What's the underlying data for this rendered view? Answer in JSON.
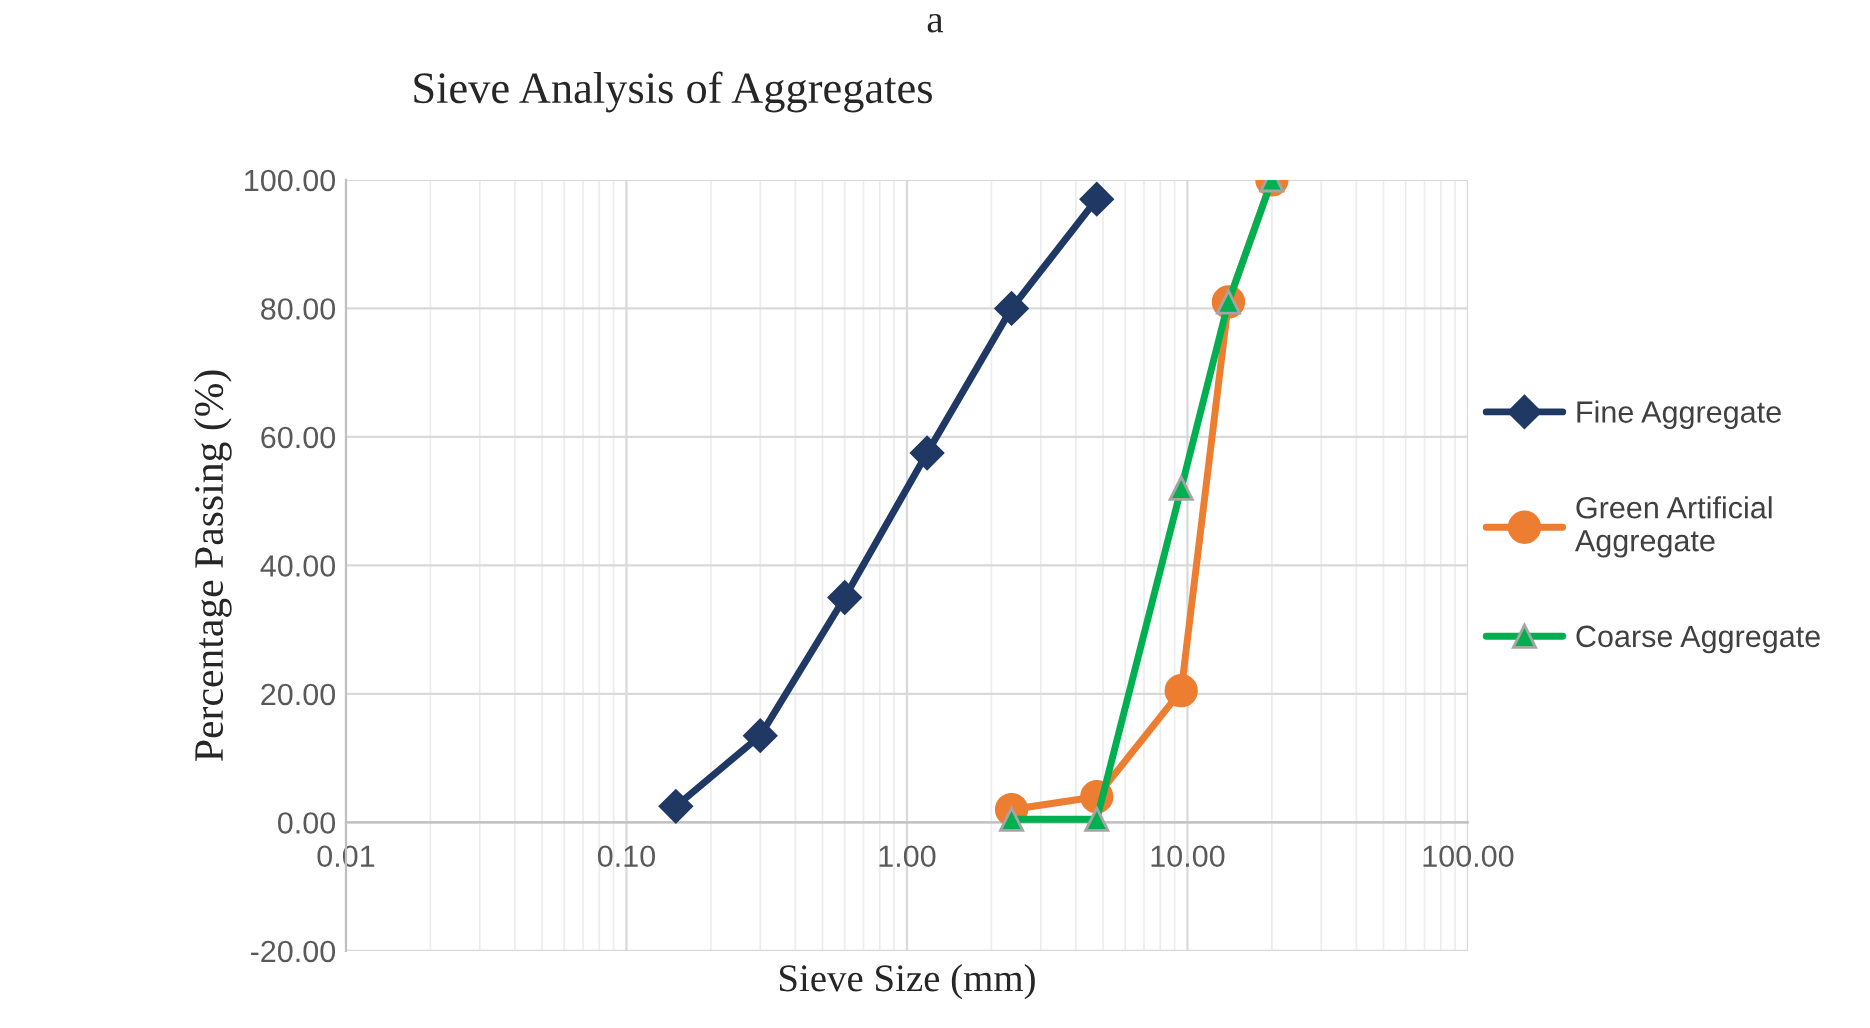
{
  "chart_data": {
    "type": "line",
    "title": "Sieve Analysis of Aggregates",
    "xlabel": "Sieve Size (mm)",
    "ylabel": "Percentage Passing (%)",
    "annotations": [
      "a"
    ],
    "log": "x",
    "xlim": [
      0.01,
      100
    ],
    "xticks": [
      {
        "value": 0.01,
        "label": "0.01"
      },
      {
        "value": 0.1,
        "label": "0.10"
      },
      {
        "value": 1,
        "label": "1.00"
      },
      {
        "value": 10,
        "label": "10.00"
      },
      {
        "value": 100,
        "label": "100.00"
      }
    ],
    "ylim": [
      -20,
      100
    ],
    "yticks": [
      {
        "value": -20,
        "label": "-20.00"
      },
      {
        "value": 0,
        "label": "0.00"
      },
      {
        "value": 20,
        "label": "20.00"
      },
      {
        "value": 40,
        "label": "40.00"
      },
      {
        "value": 60,
        "label": "60.00"
      },
      {
        "value": 80,
        "label": "80.00"
      },
      {
        "value": 100,
        "label": "100.00"
      }
    ],
    "grid": true,
    "legend": "right",
    "line_style": "solid",
    "series": [
      {
        "name": "Fine Aggregate",
        "color": "#203864",
        "marker": "diamond",
        "x": [
          0.15,
          0.3,
          0.6,
          1.18,
          2.36,
          4.75
        ],
        "values": [
          2.5,
          13.5,
          35,
          57.5,
          80,
          97
        ]
      },
      {
        "name": "Green Artificial\nAggregate",
        "color": "#ed7d31",
        "marker": "circle",
        "x": [
          2.36,
          4.75,
          9.5,
          14,
          20
        ],
        "values": [
          2,
          4,
          20.5,
          81,
          100
        ]
      },
      {
        "name": "Coarse Aggregate",
        "color": "#00b050",
        "marker": "triangle",
        "x": [
          2.36,
          4.75,
          9.5,
          14,
          20
        ],
        "values": [
          0.5,
          0.5,
          52,
          81,
          100
        ]
      }
    ]
  }
}
